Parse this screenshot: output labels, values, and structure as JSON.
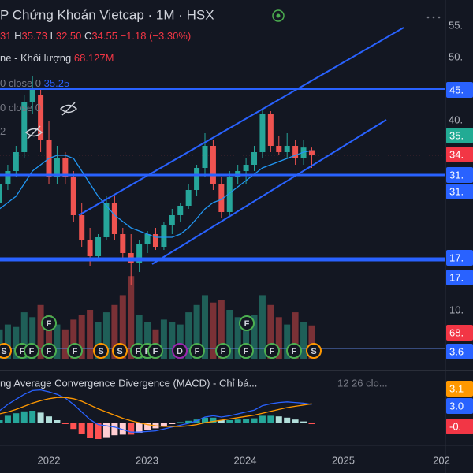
{
  "header": {
    "title": "P Chứng Khoán Vietcap · 1M · HSX",
    "legend_lines": [
      [
        {
          "text": "31",
          "color": "#f23645"
        },
        {
          "text": " H",
          "color": "#d1d4dc"
        },
        {
          "text": "35.73",
          "color": "#f23645"
        },
        {
          "text": " L",
          "color": "#d1d4dc"
        },
        {
          "text": "32.50",
          "color": "#f23645"
        },
        {
          "text": " C",
          "color": "#d1d4dc"
        },
        {
          "text": "34.55",
          "color": "#f23645"
        },
        {
          "text": " −1.18 (−3.30%)",
          "color": "#f23645"
        }
      ],
      [
        {
          "text": "ne - Khối lượng",
          "color": "#d1d4dc"
        },
        {
          "text": "  68.127M",
          "color": "#f23645"
        }
      ],
      [
        {
          "text": "0 close 0",
          "color": "#787b86"
        },
        {
          "text": "  35.25",
          "color": "#2962ff"
        }
      ],
      [
        {
          "text": "0 close 0",
          "color": "#787b86"
        }
      ],
      [
        {
          "text": "2",
          "color": "#787b86"
        }
      ]
    ]
  },
  "chart_data": {
    "type": "candlestick",
    "open": [
      27,
      30,
      32,
      35,
      43,
      44,
      37,
      31,
      34,
      31,
      25,
      21,
      18.5,
      21.5,
      27,
      22,
      19,
      17.5,
      20.5,
      22,
      20,
      23.5,
      25,
      26.5,
      29,
      32.5,
      36,
      30,
      25.5,
      31,
      32,
      33,
      35,
      41,
      36,
      35,
      36,
      34,
      35.31
    ],
    "high": [
      31,
      33,
      36,
      44,
      47,
      45,
      40,
      36,
      35,
      32,
      27,
      23,
      22,
      28,
      28,
      23,
      22,
      21,
      22.5,
      23,
      24,
      26,
      27,
      30,
      33,
      38,
      37,
      31,
      32,
      33,
      34,
      36,
      42,
      41.5,
      37.5,
      38,
      37,
      37,
      35.73
    ],
    "low": [
      26,
      29,
      31,
      34,
      41,
      35,
      30,
      30,
      30,
      24,
      20,
      17,
      18,
      21,
      21,
      18,
      14,
      16,
      19,
      19.5,
      19.5,
      22,
      24,
      26,
      28,
      31,
      29,
      24.5,
      25,
      30,
      30,
      32,
      34,
      35,
      34.5,
      34,
      33,
      33,
      32.5
    ],
    "close": [
      30,
      32,
      35,
      43,
      45,
      37,
      31,
      34,
      31,
      25,
      21,
      18.5,
      21.5,
      27,
      22,
      19,
      17.5,
      20.5,
      22,
      20,
      23.5,
      25,
      26.5,
      29,
      32.5,
      36,
      30,
      25.5,
      31,
      32,
      33,
      35,
      41,
      36,
      35,
      36,
      34,
      35.73,
      34.55
    ],
    "up_color": "#26a69a",
    "down_color": "#ef5350",
    "up_volume_color": "#1f5f58",
    "down_volume_color": "#7a3136",
    "ma": {
      "color": "#2196f3",
      "values": [
        26,
        27,
        28,
        30,
        32,
        33,
        34,
        34.5,
        34.5,
        34,
        32,
        30,
        28,
        26.5,
        25,
        24,
        23,
        22.5,
        22,
        21.5,
        21.5,
        21.5,
        22,
        23,
        24.5,
        26,
        27,
        27.5,
        28.5,
        29.5,
        30.5,
        31.5,
        32.5,
        33,
        33.5,
        34,
        34.5,
        35,
        35.25
      ]
    },
    "volume": {
      "values": [
        60,
        70,
        65,
        95,
        85,
        110,
        90,
        70,
        60,
        80,
        90,
        100,
        75,
        95,
        110,
        130,
        169,
        90,
        75,
        60,
        80,
        75,
        70,
        95,
        110,
        130,
        115,
        120,
        100,
        85,
        70,
        90,
        130,
        110,
        85,
        70,
        95,
        75,
        68.127
      ]
    },
    "yticks": [
      {
        "value": 55,
        "label": "55."
      },
      {
        "value": 50,
        "label": "50."
      },
      {
        "value": 40,
        "label": "40."
      }
    ],
    "x_labels": [
      "2022",
      "2023",
      "2024",
      "2025",
      "202"
    ],
    "macd": {
      "title": "ng Average Convergence Divergence (MACD) - Chỉ bá...",
      "params": "12 26 clo...",
      "macd": {
        "color": "#2962ff",
        "values": [
          2,
          3,
          3.8,
          4.6,
          5.2,
          5.3,
          5.0,
          4.6,
          4.0,
          3.0,
          1.8,
          0.6,
          -0.2,
          -0.4,
          -0.6,
          -1.0,
          -1.4,
          -1.4,
          -1.3,
          -1.2,
          -0.9,
          -0.6,
          -0.3,
          0.0,
          0.4,
          1.0,
          1.2,
          1.0,
          1.2,
          1.5,
          1.8,
          2.1,
          2.8,
          3.1,
          3.3,
          3.4,
          3.3,
          3.2,
          3.0
        ]
      },
      "signal": {
        "color": "#ff9800",
        "values": [
          1.5,
          1.8,
          2.2,
          2.7,
          3.2,
          3.6,
          3.9,
          4.1,
          4.1,
          3.9,
          3.5,
          2.9,
          2.3,
          1.8,
          1.3,
          0.8,
          0.4,
          0.1,
          -0.2,
          -0.4,
          -0.5,
          -0.5,
          -0.5,
          -0.4,
          -0.2,
          0.1,
          0.3,
          0.5,
          0.7,
          0.9,
          1.1,
          1.3,
          1.6,
          1.9,
          2.2,
          2.5,
          2.7,
          2.9,
          3.1
        ]
      },
      "histogram": {
        "colors": [
          "#26a69a",
          "#b2dfdb",
          "#ff5252",
          "#ffcdd2"
        ],
        "values": [
          0.5,
          1.2,
          1.6,
          1.9,
          2.0,
          1.7,
          1.1,
          0.5,
          -0.1,
          -0.9,
          -1.7,
          -2.3,
          -2.5,
          -2.2,
          -1.9,
          -1.8,
          -1.8,
          -1.5,
          -1.1,
          -0.8,
          -0.4,
          -0.1,
          0.2,
          0.4,
          0.6,
          0.9,
          0.9,
          0.5,
          0.5,
          0.6,
          0.7,
          0.8,
          1.2,
          1.2,
          1.1,
          0.9,
          0.6,
          0.3,
          -0.1
        ]
      }
    },
    "tags": [
      {
        "label": "45.",
        "bg": "#2962ff"
      },
      {
        "label": "35.",
        "bg": "#22ab94"
      },
      {
        "label": "34.",
        "bg": "#f23645"
      },
      {
        "label": "31.",
        "bg": "#2962ff"
      },
      {
        "label": "31.",
        "bg": "#2962ff"
      },
      {
        "label": "17.",
        "bg": "#2962ff"
      },
      {
        "label": "17.",
        "bg": "#2962ff"
      },
      {
        "label": "10.",
        "bg": "none"
      },
      {
        "label": "68.",
        "bg": "#f23645"
      },
      {
        "label": "3.6",
        "bg": "#2962ff"
      },
      {
        "label": "3.1",
        "bg": "#ff9800"
      },
      {
        "label": "3.0",
        "bg": "#2962ff"
      },
      {
        "label": "-0.",
        "bg": "#f23645"
      }
    ],
    "events": [
      {
        "label": "S",
        "color": "#ff9800"
      },
      {
        "label": "F",
        "color": "#4caf50"
      },
      {
        "label": "F",
        "color": "#4caf50"
      },
      {
        "label": "F",
        "color": "#4caf50"
      },
      {
        "label": "F",
        "color": "#4caf50"
      },
      {
        "label": "S",
        "color": "#ff9800"
      },
      {
        "label": "S",
        "color": "#ff9800"
      },
      {
        "label": "F",
        "color": "#4caf50"
      },
      {
        "label": "F",
        "color": "#4caf50"
      },
      {
        "label": "F",
        "color": "#4caf50"
      },
      {
        "label": "D",
        "color": "#9c27b0"
      },
      {
        "label": "F",
        "color": "#4caf50"
      },
      {
        "label": "F",
        "color": "#4caf50"
      },
      {
        "label": "F",
        "color": "#4caf50"
      },
      {
        "label": "F",
        "color": "#4caf50"
      },
      {
        "label": "F",
        "color": "#4caf50"
      },
      {
        "label": "S",
        "color": "#ff9800"
      },
      {
        "label": "F",
        "color": "#4caf50"
      },
      {
        "label": "F",
        "color": "#4caf50"
      }
    ]
  }
}
